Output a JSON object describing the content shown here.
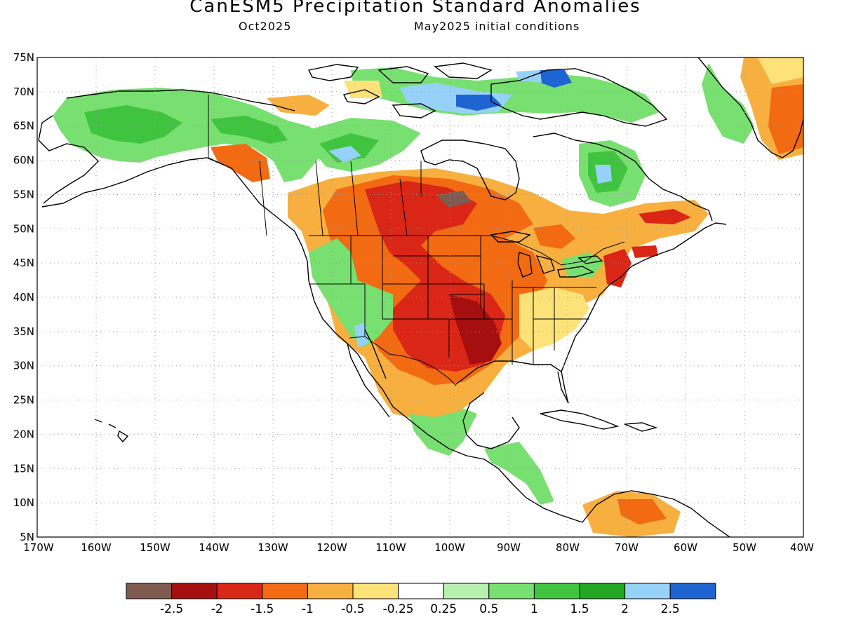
{
  "title": "CanESM5 Precipitation Standard Anomalies",
  "valid_month": "Oct2025",
  "init_text": "May2025 initial conditions",
  "lat_labels": [
    "75N",
    "70N",
    "65N",
    "60N",
    "55N",
    "50N",
    "45N",
    "40N",
    "35N",
    "30N",
    "25N",
    "20N",
    "15N",
    "10N",
    "5N"
  ],
  "lon_labels": [
    "170W",
    "160W",
    "150W",
    "140W",
    "130W",
    "120W",
    "110W",
    "100W",
    "90W",
    "80W",
    "70W",
    "60W",
    "50W",
    "40W"
  ],
  "colorbar": {
    "colors": [
      "#7f5a4f",
      "#a50f0f",
      "#d92616",
      "#f26a12",
      "#f7b040",
      "#fde27a",
      "#ffffff",
      "#b8f0b0",
      "#78e070",
      "#40c440",
      "#22a822",
      "#96d2f7",
      "#1e64d2"
    ],
    "labels": [
      "-2.5",
      "-2",
      "-1.5",
      "-1",
      "-0.5",
      "-0.25",
      "0.25",
      "0.5",
      "1",
      "1.5",
      "2",
      "2.5"
    ]
  },
  "colors": {
    "ocean": "#ffffff",
    "coast": "#000000",
    "grid": "#9a9a9a"
  }
}
